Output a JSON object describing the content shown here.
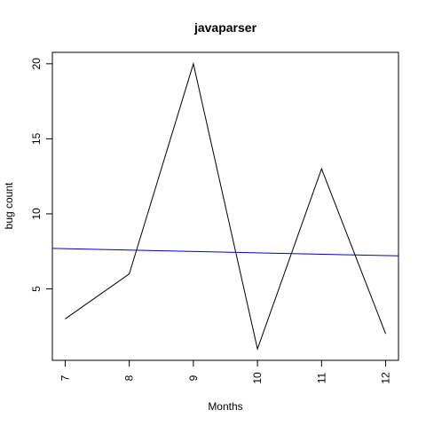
{
  "chart_data": {
    "type": "line",
    "title": "javaparser",
    "xlabel": "Months",
    "ylabel": "bug count",
    "x": [
      7,
      8,
      9,
      10,
      11,
      12
    ],
    "series": [
      {
        "values": [
          3,
          6,
          20,
          1,
          13,
          2
        ],
        "color": "#000000"
      }
    ],
    "trend_line": {
      "start": [
        6.8,
        7.7
      ],
      "end": [
        12.2,
        7.2
      ],
      "color": "#0000cc"
    },
    "xlim": [
      6.8,
      12.2
    ],
    "ylim": [
      0.24,
      20.76
    ],
    "xticks": [
      "7",
      "8",
      "9",
      "10",
      "11",
      "12"
    ],
    "yticks": [
      "5",
      "10",
      "15",
      "20"
    ],
    "grid": false,
    "legend": "none"
  }
}
